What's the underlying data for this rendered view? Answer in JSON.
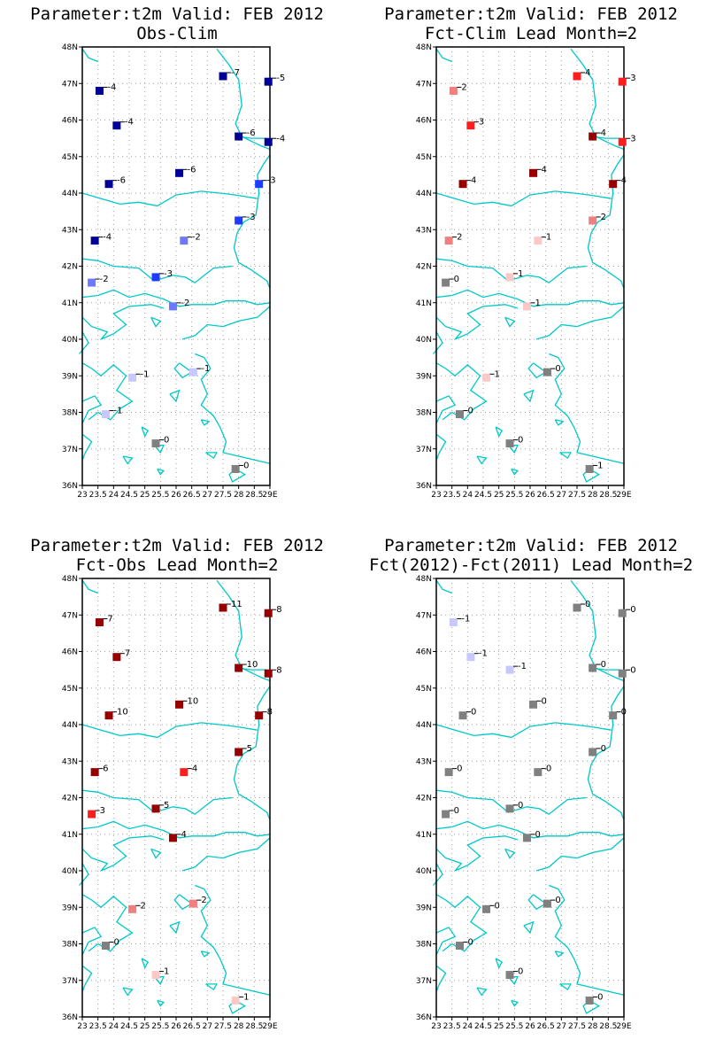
{
  "chart_data": [
    {
      "type": "scatter",
      "title": "Parameter:t2m Valid: FEB 2012",
      "subtitle": "Obs-Clim",
      "xlim": [
        23,
        29
      ],
      "ylim": [
        36,
        48
      ],
      "x_tick_labels": [
        "23",
        "23.5",
        "24",
        "24.5",
        "25",
        "25.5",
        "26",
        "26.5",
        "27",
        "27.5",
        "28",
        "28.5",
        "29E"
      ],
      "y_tick_labels": [
        "36N",
        "37N",
        "38N",
        "39N",
        "40N",
        "41N",
        "42N",
        "43N",
        "44N",
        "45N",
        "46N",
        "47N",
        "48N"
      ],
      "grid": true,
      "points": [
        {
          "x": 23.55,
          "y": 46.8,
          "value": "-4",
          "color": "#000096"
        },
        {
          "x": 27.5,
          "y": 47.2,
          "value": "-7",
          "color": "#000096"
        },
        {
          "x": 28.95,
          "y": 47.05,
          "value": "-5",
          "color": "#000096"
        },
        {
          "x": 24.1,
          "y": 45.85,
          "value": "-4",
          "color": "#000096"
        },
        {
          "x": 28.0,
          "y": 45.55,
          "value": "-6",
          "color": "#000096"
        },
        {
          "x": 28.95,
          "y": 45.4,
          "value": "-4",
          "color": "#000096"
        },
        {
          "x": 23.85,
          "y": 44.25,
          "value": "-6",
          "color": "#000096"
        },
        {
          "x": 26.1,
          "y": 44.55,
          "value": "-6",
          "color": "#000096"
        },
        {
          "x": 28.65,
          "y": 44.25,
          "value": "-3",
          "color": "#1e3cff"
        },
        {
          "x": 23.4,
          "y": 42.7,
          "value": "-4",
          "color": "#000096"
        },
        {
          "x": 28.0,
          "y": 43.25,
          "value": "-3",
          "color": "#1e3cff"
        },
        {
          "x": 26.25,
          "y": 42.7,
          "value": "-2",
          "color": "#6e78ff"
        },
        {
          "x": 25.35,
          "y": 41.7,
          "value": "-3",
          "color": "#1e3cff"
        },
        {
          "x": 23.3,
          "y": 41.55,
          "value": "-2",
          "color": "#6e78ff"
        },
        {
          "x": 25.9,
          "y": 40.9,
          "value": "-2",
          "color": "#6e78ff"
        },
        {
          "x": 24.6,
          "y": 38.95,
          "value": "-1",
          "color": "#c8c8ff"
        },
        {
          "x": 26.55,
          "y": 39.1,
          "value": "-1",
          "color": "#c8c8ff"
        },
        {
          "x": 23.75,
          "y": 37.95,
          "value": "-1",
          "color": "#c8c8ff"
        },
        {
          "x": 25.35,
          "y": 37.15,
          "value": "0",
          "color": "#808080"
        },
        {
          "x": 27.9,
          "y": 36.45,
          "value": "0",
          "color": "#808080"
        }
      ]
    },
    {
      "type": "scatter",
      "title": "Parameter:t2m Valid: FEB 2012",
      "subtitle": "Fct-Clim Lead Month=2",
      "xlim": [
        23,
        29
      ],
      "ylim": [
        36,
        48
      ],
      "x_tick_labels": [
        "23",
        "23.5",
        "24",
        "24.5",
        "25",
        "25.5",
        "26",
        "26.5",
        "27",
        "27.5",
        "28",
        "28.5",
        "29E"
      ],
      "y_tick_labels": [
        "36N",
        "37N",
        "38N",
        "39N",
        "40N",
        "41N",
        "42N",
        "43N",
        "44N",
        "45N",
        "46N",
        "47N",
        "48N"
      ],
      "grid": true,
      "points": [
        {
          "x": 23.55,
          "y": 46.8,
          "value": "2",
          "color": "#f08080"
        },
        {
          "x": 27.5,
          "y": 47.2,
          "value": "4",
          "color": "#ff1e1e"
        },
        {
          "x": 28.95,
          "y": 47.05,
          "value": "3",
          "color": "#ff1e1e"
        },
        {
          "x": 24.1,
          "y": 45.85,
          "value": "3",
          "color": "#ff1e1e"
        },
        {
          "x": 28.0,
          "y": 45.55,
          "value": "4",
          "color": "#960000"
        },
        {
          "x": 28.95,
          "y": 45.4,
          "value": "3",
          "color": "#ff1e1e"
        },
        {
          "x": 23.85,
          "y": 44.25,
          "value": "4",
          "color": "#960000"
        },
        {
          "x": 26.1,
          "y": 44.55,
          "value": "4",
          "color": "#960000"
        },
        {
          "x": 28.65,
          "y": 44.25,
          "value": "4",
          "color": "#960000"
        },
        {
          "x": 23.4,
          "y": 42.7,
          "value": "2",
          "color": "#f08080"
        },
        {
          "x": 28.0,
          "y": 43.25,
          "value": "2",
          "color": "#f08080"
        },
        {
          "x": 26.25,
          "y": 42.7,
          "value": "1",
          "color": "#ffc8c8"
        },
        {
          "x": 25.35,
          "y": 41.7,
          "value": "1",
          "color": "#ffc8c8"
        },
        {
          "x": 23.3,
          "y": 41.55,
          "value": "0",
          "color": "#808080"
        },
        {
          "x": 25.9,
          "y": 40.9,
          "value": "1",
          "color": "#ffc8c8"
        },
        {
          "x": 24.6,
          "y": 38.95,
          "value": "1",
          "color": "#ffc8c8"
        },
        {
          "x": 26.55,
          "y": 39.1,
          "value": "0",
          "color": "#808080"
        },
        {
          "x": 23.75,
          "y": 37.95,
          "value": "0",
          "color": "#808080"
        },
        {
          "x": 25.35,
          "y": 37.15,
          "value": "0",
          "color": "#808080"
        },
        {
          "x": 27.9,
          "y": 36.45,
          "value": "1",
          "color": "#808080"
        }
      ]
    },
    {
      "type": "scatter",
      "title": "Parameter:t2m Valid: FEB 2012",
      "subtitle": "Fct-Obs Lead Month=2",
      "xlim": [
        23,
        29
      ],
      "ylim": [
        36,
        48
      ],
      "x_tick_labels": [
        "23",
        "23.5",
        "24",
        "24.5",
        "25",
        "25.5",
        "26",
        "26.5",
        "27",
        "27.5",
        "28",
        "28.5",
        "29E"
      ],
      "y_tick_labels": [
        "36N",
        "37N",
        "38N",
        "39N",
        "40N",
        "41N",
        "42N",
        "43N",
        "44N",
        "45N",
        "46N",
        "47N",
        "48N"
      ],
      "grid": true,
      "points": [
        {
          "x": 23.55,
          "y": 46.8,
          "value": "7",
          "color": "#960000"
        },
        {
          "x": 27.5,
          "y": 47.2,
          "value": "11",
          "color": "#960000"
        },
        {
          "x": 28.95,
          "y": 47.05,
          "value": "8",
          "color": "#960000"
        },
        {
          "x": 24.1,
          "y": 45.85,
          "value": "7",
          "color": "#960000"
        },
        {
          "x": 28.0,
          "y": 45.55,
          "value": "10",
          "color": "#960000"
        },
        {
          "x": 28.95,
          "y": 45.4,
          "value": "8",
          "color": "#960000"
        },
        {
          "x": 23.85,
          "y": 44.25,
          "value": "10",
          "color": "#960000"
        },
        {
          "x": 26.1,
          "y": 44.55,
          "value": "10",
          "color": "#960000"
        },
        {
          "x": 28.65,
          "y": 44.25,
          "value": "8",
          "color": "#960000"
        },
        {
          "x": 23.4,
          "y": 42.7,
          "value": "6",
          "color": "#960000"
        },
        {
          "x": 28.0,
          "y": 43.25,
          "value": "5",
          "color": "#960000"
        },
        {
          "x": 26.25,
          "y": 42.7,
          "value": "4",
          "color": "#ff1e1e"
        },
        {
          "x": 25.35,
          "y": 41.7,
          "value": "5",
          "color": "#960000"
        },
        {
          "x": 23.3,
          "y": 41.55,
          "value": "3",
          "color": "#ff1e1e"
        },
        {
          "x": 25.9,
          "y": 40.9,
          "value": "4",
          "color": "#960000"
        },
        {
          "x": 24.6,
          "y": 38.95,
          "value": "2",
          "color": "#f08080"
        },
        {
          "x": 26.55,
          "y": 39.1,
          "value": "2",
          "color": "#f08080"
        },
        {
          "x": 23.75,
          "y": 37.95,
          "value": "0",
          "color": "#808080"
        },
        {
          "x": 25.35,
          "y": 37.15,
          "value": "1",
          "color": "#ffc8c8"
        },
        {
          "x": 27.9,
          "y": 36.45,
          "value": "1",
          "color": "#ffc8c8"
        }
      ]
    },
    {
      "type": "scatter",
      "title": "Parameter:t2m Valid: FEB 2012",
      "subtitle": "Fct(2012)-Fct(2011) Lead Month=2",
      "xlim": [
        23,
        29
      ],
      "ylim": [
        36,
        48
      ],
      "x_tick_labels": [
        "23",
        "23.5",
        "24",
        "24.5",
        "25",
        "25.5",
        "26",
        "26.5",
        "27",
        "27.5",
        "28",
        "28.5",
        "29E"
      ],
      "y_tick_labels": [
        "36N",
        "37N",
        "38N",
        "39N",
        "40N",
        "41N",
        "42N",
        "43N",
        "44N",
        "45N",
        "46N",
        "47N",
        "48N"
      ],
      "grid": true,
      "points": [
        {
          "x": 23.55,
          "y": 46.8,
          "value": "-1",
          "color": "#c8c8ff"
        },
        {
          "x": 27.5,
          "y": 47.2,
          "value": "0",
          "color": "#808080"
        },
        {
          "x": 28.95,
          "y": 47.05,
          "value": "0",
          "color": "#808080"
        },
        {
          "x": 24.1,
          "y": 45.85,
          "value": "-1",
          "color": "#c8c8ff"
        },
        {
          "x": 25.35,
          "y": 45.5,
          "value": "-1",
          "color": "#c8c8ff"
        },
        {
          "x": 28.0,
          "y": 45.55,
          "value": "0",
          "color": "#808080"
        },
        {
          "x": 28.95,
          "y": 45.4,
          "value": "0",
          "color": "#808080"
        },
        {
          "x": 23.85,
          "y": 44.25,
          "value": "0",
          "color": "#808080"
        },
        {
          "x": 26.1,
          "y": 44.55,
          "value": "0",
          "color": "#808080"
        },
        {
          "x": 28.65,
          "y": 44.25,
          "value": "0",
          "color": "#808080"
        },
        {
          "x": 23.4,
          "y": 42.7,
          "value": "0",
          "color": "#808080"
        },
        {
          "x": 28.0,
          "y": 43.25,
          "value": "0",
          "color": "#808080"
        },
        {
          "x": 26.25,
          "y": 42.7,
          "value": "0",
          "color": "#808080"
        },
        {
          "x": 25.35,
          "y": 41.7,
          "value": "0",
          "color": "#808080"
        },
        {
          "x": 23.3,
          "y": 41.55,
          "value": "0",
          "color": "#808080"
        },
        {
          "x": 25.9,
          "y": 40.9,
          "value": "0",
          "color": "#808080"
        },
        {
          "x": 24.6,
          "y": 38.95,
          "value": "0",
          "color": "#808080"
        },
        {
          "x": 26.55,
          "y": 39.1,
          "value": "0",
          "color": "#808080"
        },
        {
          "x": 23.75,
          "y": 37.95,
          "value": "0",
          "color": "#808080"
        },
        {
          "x": 25.35,
          "y": 37.15,
          "value": "0",
          "color": "#808080"
        },
        {
          "x": 27.9,
          "y": 36.45,
          "value": "0",
          "color": "#808080"
        }
      ]
    }
  ],
  "colors": {
    "coastline": "#00c8c8",
    "grid": "#a0a0a0",
    "frame": "#000000"
  }
}
